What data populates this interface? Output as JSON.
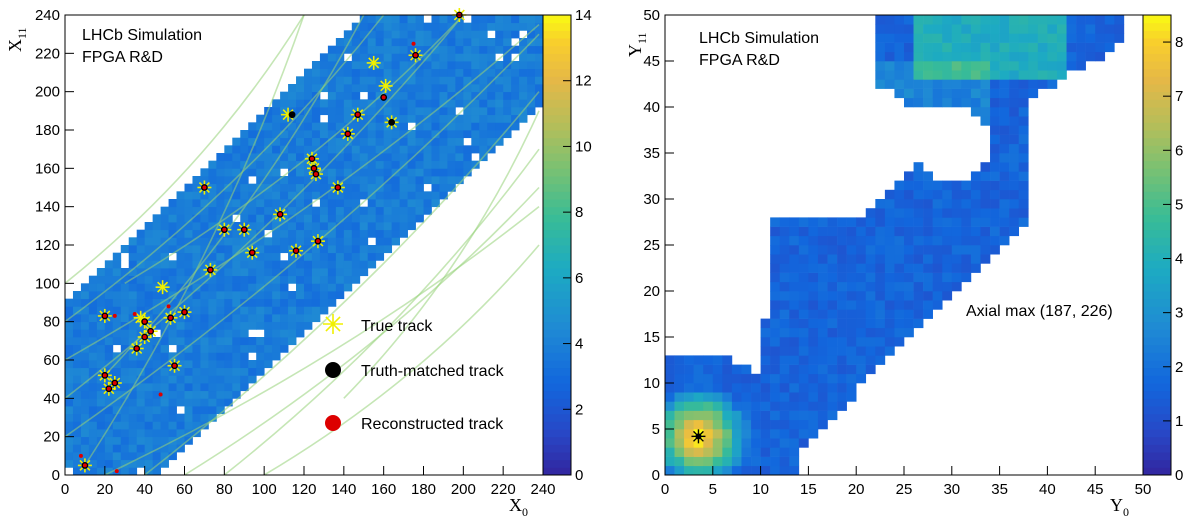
{
  "chart_data": [
    {
      "type": "heatmap",
      "xlabel": "X0",
      "ylabel": "X11",
      "xlim": [
        0,
        240
      ],
      "ylim": [
        0,
        240
      ],
      "xticks": [
        0,
        20,
        40,
        60,
        80,
        100,
        120,
        140,
        160,
        180,
        200,
        220,
        240
      ],
      "yticks": [
        0,
        20,
        40,
        60,
        80,
        100,
        120,
        140,
        160,
        180,
        200,
        220,
        240
      ],
      "colorbar": {
        "min": 0,
        "max": 14,
        "ticks": [
          0,
          2,
          4,
          6,
          8,
          10,
          12,
          14
        ]
      },
      "annotations": [
        "LHCb Simulation",
        "FPGA R&D"
      ],
      "legend": {
        "placement": "bottom-right",
        "entries": [
          {
            "label": "True track",
            "marker": "star",
            "color": "#f0f000"
          },
          {
            "label": "Truth-matched track",
            "marker": "circle",
            "color": "#000000"
          },
          {
            "label": "Reconstructed track",
            "marker": "circle",
            "color": "#dd0000"
          }
        ]
      },
      "band": {
        "x_minus_y_min": -88,
        "x_minus_y_max": 45,
        "x_max": 238,
        "y_max": 240
      },
      "true_tracks": [
        [
          10,
          5
        ],
        [
          20,
          52
        ],
        [
          22,
          45
        ],
        [
          25,
          48
        ],
        [
          20,
          83
        ],
        [
          38,
          82
        ],
        [
          40,
          80
        ],
        [
          43,
          75
        ],
        [
          36,
          66
        ],
        [
          40,
          72
        ],
        [
          53,
          82
        ],
        [
          60,
          85
        ],
        [
          55,
          57
        ],
        [
          70,
          150
        ],
        [
          73,
          107
        ],
        [
          80,
          128
        ],
        [
          90,
          128
        ],
        [
          94,
          116
        ],
        [
          108,
          136
        ],
        [
          112,
          188
        ],
        [
          116,
          117
        ],
        [
          127,
          122
        ],
        [
          137,
          150
        ],
        [
          124,
          165
        ],
        [
          125,
          160
        ],
        [
          126,
          157
        ],
        [
          142,
          178
        ],
        [
          147,
          188
        ],
        [
          155,
          215
        ],
        [
          161,
          203
        ],
        [
          164,
          184
        ],
        [
          176,
          219
        ],
        [
          198,
          240
        ],
        [
          49,
          98
        ]
      ],
      "matched_tracks": [
        [
          10,
          5
        ],
        [
          20,
          52
        ],
        [
          22,
          45
        ],
        [
          25,
          48
        ],
        [
          20,
          83
        ],
        [
          40,
          80
        ],
        [
          43,
          75
        ],
        [
          36,
          66
        ],
        [
          40,
          72
        ],
        [
          53,
          82
        ],
        [
          60,
          85
        ],
        [
          55,
          57
        ],
        [
          70,
          150
        ],
        [
          73,
          107
        ],
        [
          80,
          128
        ],
        [
          90,
          128
        ],
        [
          94,
          116
        ],
        [
          108,
          136
        ],
        [
          114,
          188
        ],
        [
          116,
          117
        ],
        [
          127,
          122
        ],
        [
          137,
          150
        ],
        [
          124,
          165
        ],
        [
          125,
          160
        ],
        [
          126,
          157
        ],
        [
          142,
          178
        ],
        [
          147,
          188
        ],
        [
          160,
          197
        ],
        [
          164,
          184
        ],
        [
          176,
          219
        ],
        [
          198,
          240
        ]
      ],
      "reco_tracks": [
        [
          10,
          5
        ],
        [
          20,
          52
        ],
        [
          22,
          45
        ],
        [
          25,
          48
        ],
        [
          20,
          83
        ],
        [
          40,
          80
        ],
        [
          43,
          75
        ],
        [
          36,
          66
        ],
        [
          40,
          72
        ],
        [
          53,
          82
        ],
        [
          60,
          85
        ],
        [
          55,
          57
        ],
        [
          70,
          150
        ],
        [
          73,
          107
        ],
        [
          80,
          128
        ],
        [
          90,
          128
        ],
        [
          94,
          116
        ],
        [
          108,
          136
        ],
        [
          116,
          117
        ],
        [
          127,
          122
        ],
        [
          137,
          150
        ],
        [
          124,
          165
        ],
        [
          125,
          160
        ],
        [
          126,
          157
        ],
        [
          142,
          178
        ],
        [
          147,
          188
        ],
        [
          160,
          197
        ],
        [
          176,
          219
        ],
        [
          198,
          240
        ],
        [
          8,
          10
        ],
        [
          25,
          83
        ],
        [
          35,
          84
        ],
        [
          48,
          42
        ],
        [
          52,
          88
        ],
        [
          26,
          2
        ],
        [
          175,
          225
        ]
      ]
    },
    {
      "type": "heatmap",
      "xlabel": "Y0",
      "ylabel": "Y11",
      "xlim": [
        0,
        50
      ],
      "ylim": [
        0,
        50
      ],
      "xticks": [
        0,
        5,
        10,
        15,
        20,
        25,
        30,
        35,
        40,
        45,
        50
      ],
      "yticks": [
        0,
        5,
        10,
        15,
        20,
        25,
        30,
        35,
        40,
        45,
        50
      ],
      "colorbar": {
        "min": 0,
        "max": 8.5,
        "ticks": [
          0,
          1,
          2,
          3,
          4,
          5,
          6,
          7,
          8
        ]
      },
      "annotations": [
        "LHCb Simulation",
        "FPGA R&D",
        "Axial max (187, 226)"
      ],
      "marker": {
        "x": 3.5,
        "y": 4.2,
        "label": "max"
      }
    }
  ],
  "texts": {
    "left_sim": "LHCb Simulation",
    "left_rd": "FPGA R&D",
    "right_sim": "LHCb Simulation",
    "right_rd": "FPGA R&D",
    "axial_max": "Axial max (187, 226)",
    "leg_true": "True track",
    "leg_matched": "Truth-matched track",
    "leg_reco": "Reconstructed track",
    "xl_left_main": "X",
    "xl_left_sub": "0",
    "yl_left_main": "X",
    "yl_left_sub": "11",
    "xl_right_main": "Y",
    "xl_right_sub": "0",
    "yl_right_main": "Y",
    "yl_right_sub": "11"
  }
}
